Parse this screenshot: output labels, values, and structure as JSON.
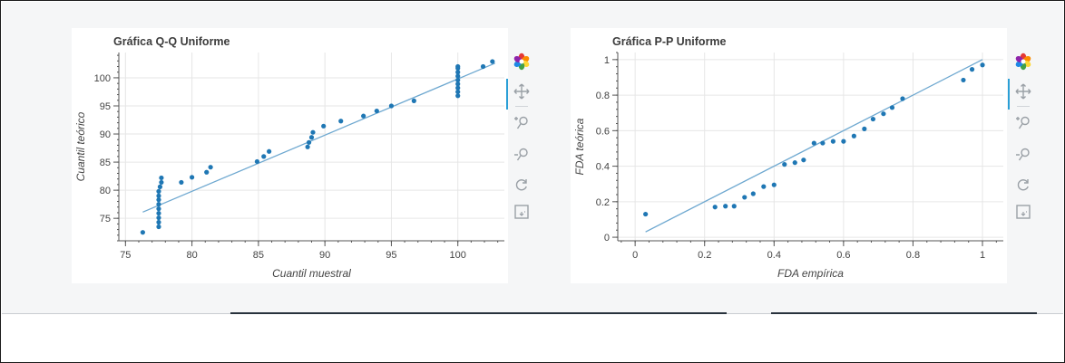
{
  "chart_data": [
    {
      "type": "scatter",
      "title": "Gráfica Q-Q Uniforme",
      "xlabel": "Cuantil muestral",
      "ylabel": "Cuantil teórico",
      "xlim": [
        74.5,
        103.5
      ],
      "ylim": [
        71.0,
        104.5
      ],
      "xticks": [
        75,
        80,
        85,
        90,
        95,
        100
      ],
      "yticks": [
        75,
        80,
        85,
        90,
        95,
        100
      ],
      "grid": true,
      "point_color": "#1f77b4",
      "line_color": "#6ea8d0",
      "fit_line": {
        "x": [
          76.3,
          102.8
        ],
        "y": [
          76.1,
          102.6
        ]
      },
      "series": [
        {
          "x": [
            76.3,
            77.5,
            77.5,
            77.5,
            77.5,
            77.5,
            77.5,
            77.5,
            77.5,
            77.5,
            77.6,
            77.7,
            77.7,
            79.2,
            80.0,
            81.1,
            81.4,
            84.9,
            85.4,
            85.8,
            88.7,
            88.8,
            89.0,
            89.1,
            89.9,
            91.2,
            92.9,
            93.9,
            95.0,
            96.7,
            100.0,
            100.0,
            100.0,
            100.0,
            100.0,
            100.0,
            100.0,
            100.0,
            100.0,
            101.9,
            102.6
          ],
          "y": [
            72.5,
            73.5,
            74.3,
            75.1,
            75.9,
            76.7,
            77.5,
            78.3,
            79.0,
            79.8,
            80.6,
            81.4,
            82.2,
            81.4,
            82.3,
            83.2,
            84.1,
            85.1,
            86.0,
            86.9,
            87.7,
            88.5,
            89.4,
            90.3,
            91.4,
            92.3,
            93.2,
            94.1,
            95.0,
            95.9,
            96.8,
            97.5,
            98.2,
            98.9,
            99.6,
            100.3,
            101.0,
            101.7,
            102.0,
            102.0,
            102.9
          ]
        }
      ]
    },
    {
      "type": "scatter",
      "title": "Gráfica P-P Uniforme",
      "xlabel": "FDA empírica",
      "ylabel": "FDA teórica",
      "xlim": [
        -0.05,
        1.06
      ],
      "ylim": [
        -0.02,
        1.04
      ],
      "xticks": [
        0,
        0.2,
        0.4,
        0.6,
        0.8,
        1
      ],
      "yticks": [
        0,
        0.2,
        0.4,
        0.6,
        0.8,
        1
      ],
      "grid": true,
      "point_color": "#1f77b4",
      "line_color": "#6ea8d0",
      "fit_line": {
        "x": [
          0.03,
          1.0
        ],
        "y": [
          0.03,
          1.0
        ]
      },
      "series": [
        {
          "x": [
            0.03,
            0.23,
            0.26,
            0.285,
            0.315,
            0.34,
            0.37,
            0.4,
            0.43,
            0.46,
            0.485,
            0.515,
            0.54,
            0.57,
            0.6,
            0.63,
            0.66,
            0.685,
            0.715,
            0.74,
            0.77,
            0.945,
            0.97,
            1.0
          ],
          "y": [
            0.13,
            0.17,
            0.175,
            0.175,
            0.225,
            0.245,
            0.285,
            0.295,
            0.41,
            0.42,
            0.435,
            0.53,
            0.53,
            0.54,
            0.54,
            0.57,
            0.61,
            0.665,
            0.695,
            0.73,
            0.78,
            0.885,
            0.945,
            0.97
          ]
        }
      ]
    }
  ],
  "toolbar": {
    "logo_icon": "bokeh-logo-icon",
    "tools": [
      "pan-icon",
      "zoom-in-icon",
      "zoom-out-icon",
      "reset-icon",
      "save-icon"
    ],
    "active_color": "#2a9fd6"
  }
}
